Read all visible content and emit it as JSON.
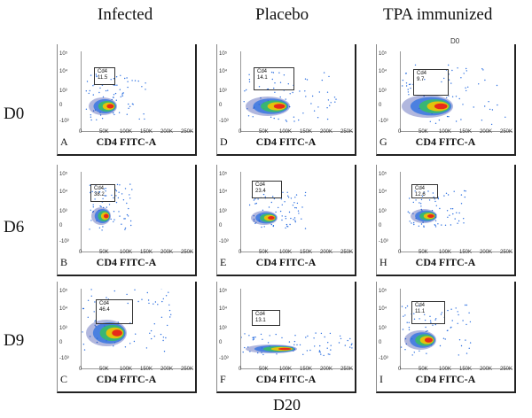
{
  "column_headers": [
    "Infected",
    "Placebo",
    "TPA immunized"
  ],
  "row_headers": [
    "D0",
    "D6",
    "D9"
  ],
  "footer_label": "D20",
  "top_stub_text": "D0",
  "x_axis_label": "CD4 FITC-A",
  "x_ticks": [
    "0",
    "50K",
    "100K",
    "150K",
    "200K",
    "250K"
  ],
  "y_ticks": [
    "10⁵",
    "10⁴",
    "10³",
    "0",
    "-10³"
  ],
  "gate_name": "Cd4",
  "colors": {
    "hot": "#e8231b",
    "warm": "#f5c400",
    "mid": "#36c060",
    "cool": "#2a6ee0",
    "sparse": "#2030a0"
  },
  "panels": [
    {
      "letter": "A",
      "gate_value": "11.5"
    },
    {
      "letter": "D",
      "gate_value": "14.1"
    },
    {
      "letter": "G",
      "gate_value": "9.7"
    },
    {
      "letter": "B",
      "gate_value": "38.2"
    },
    {
      "letter": "E",
      "gate_value": "23.4"
    },
    {
      "letter": "H",
      "gate_value": "12.6"
    },
    {
      "letter": "C",
      "gate_value": "46.4"
    },
    {
      "letter": "F",
      "gate_value": "13.1"
    },
    {
      "letter": "I",
      "gate_value": "11.1"
    }
  ]
}
